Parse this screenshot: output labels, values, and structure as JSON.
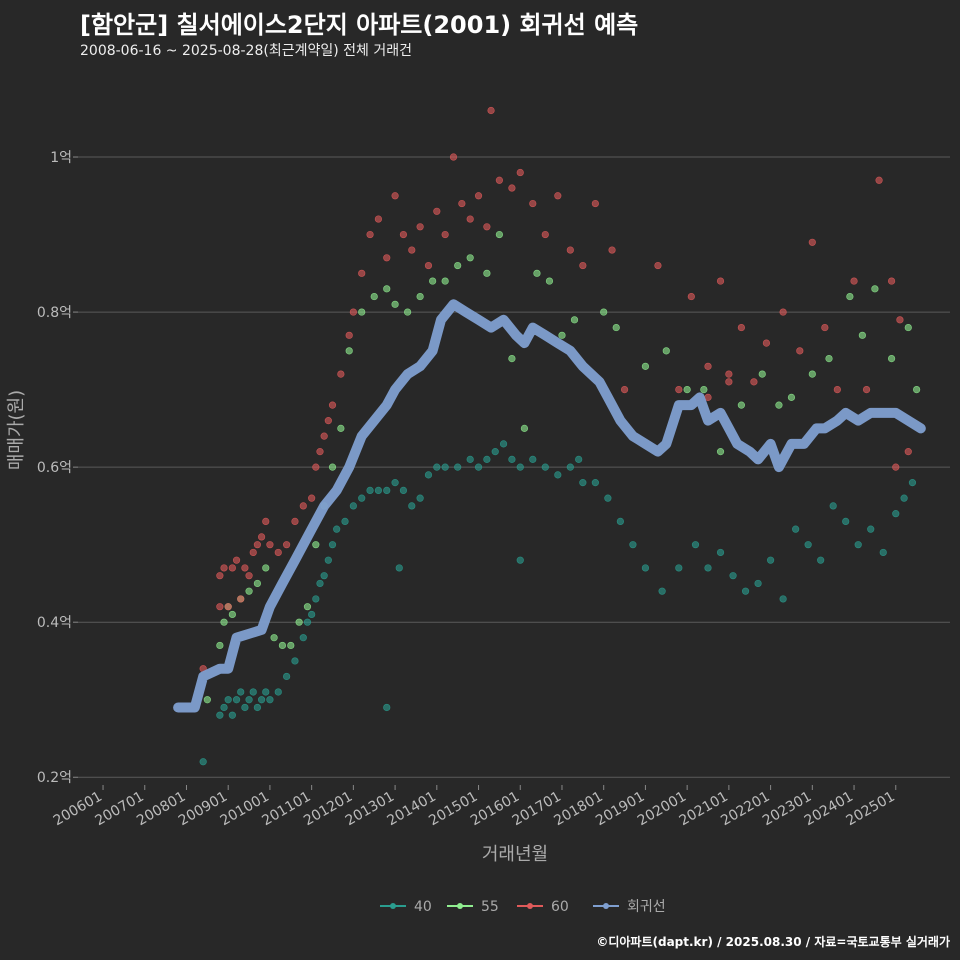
{
  "header": {
    "title": "[함안군] 칠서에이스2단지 아파트(2001) 회귀선 예측",
    "subtitle": "2008-06-16 ~ 2025-08-28(최근계약일) 전체 거래건"
  },
  "footer": "©디아파트(dapt.kr) / 2025.08.30 / 자료=국토교통부 실거래가",
  "chart_data": {
    "type": "scatter",
    "xlabel": "거래년월",
    "ylabel": "매매가(원)",
    "x_ticks": [
      "200601",
      "200701",
      "200801",
      "200901",
      "201001",
      "201101",
      "201201",
      "201301",
      "201401",
      "201501",
      "201601",
      "201701",
      "201801",
      "201901",
      "202001",
      "202101",
      "202201",
      "202301",
      "202401",
      "202501"
    ],
    "y_ticks": [
      {
        "value": 0.2,
        "label": "0.2억"
      },
      {
        "value": 0.4,
        "label": "0.4억"
      },
      {
        "value": 0.6,
        "label": "0.6억"
      },
      {
        "value": 0.8,
        "label": "0.8억"
      },
      {
        "value": 1.0,
        "label": "1억"
      }
    ],
    "ylim": [
      0.19,
      1.08
    ],
    "xlim": [
      2005.4,
      2026.3
    ],
    "colors": {
      "40": "#2a9d8f",
      "55": "#90ee90",
      "60": "#e05a5a",
      "regression": "#7f9fd0"
    },
    "legend": [
      {
        "key": "40",
        "label": "40"
      },
      {
        "key": "55",
        "label": "55"
      },
      {
        "key": "60",
        "label": "60"
      },
      {
        "key": "regression",
        "label": "회귀선"
      }
    ],
    "series": [
      {
        "name": "40",
        "points": [
          [
            2008.4,
            0.22
          ],
          [
            2008.8,
            0.28
          ],
          [
            2008.9,
            0.29
          ],
          [
            2009.0,
            0.3
          ],
          [
            2009.1,
            0.28
          ],
          [
            2009.2,
            0.3
          ],
          [
            2009.3,
            0.31
          ],
          [
            2009.4,
            0.29
          ],
          [
            2009.5,
            0.3
          ],
          [
            2009.6,
            0.31
          ],
          [
            2009.7,
            0.29
          ],
          [
            2009.8,
            0.3
          ],
          [
            2009.9,
            0.31
          ],
          [
            2010.0,
            0.3
          ],
          [
            2010.2,
            0.31
          ],
          [
            2010.4,
            0.33
          ],
          [
            2010.6,
            0.35
          ],
          [
            2010.8,
            0.38
          ],
          [
            2010.9,
            0.4
          ],
          [
            2011.0,
            0.41
          ],
          [
            2011.1,
            0.43
          ],
          [
            2011.2,
            0.45
          ],
          [
            2011.3,
            0.46
          ],
          [
            2011.4,
            0.48
          ],
          [
            2011.5,
            0.5
          ],
          [
            2011.6,
            0.52
          ],
          [
            2011.8,
            0.53
          ],
          [
            2012.0,
            0.55
          ],
          [
            2012.2,
            0.56
          ],
          [
            2012.4,
            0.57
          ],
          [
            2012.6,
            0.57
          ],
          [
            2012.8,
            0.57
          ],
          [
            2013.0,
            0.58
          ],
          [
            2013.2,
            0.57
          ],
          [
            2013.4,
            0.55
          ],
          [
            2013.6,
            0.56
          ],
          [
            2013.8,
            0.59
          ],
          [
            2014.0,
            0.6
          ],
          [
            2014.2,
            0.6
          ],
          [
            2014.5,
            0.6
          ],
          [
            2014.8,
            0.61
          ],
          [
            2015.0,
            0.6
          ],
          [
            2015.2,
            0.61
          ],
          [
            2015.4,
            0.62
          ],
          [
            2015.6,
            0.63
          ],
          [
            2015.8,
            0.61
          ],
          [
            2016.0,
            0.6
          ],
          [
            2016.3,
            0.61
          ],
          [
            2016.6,
            0.6
          ],
          [
            2016.9,
            0.59
          ],
          [
            2017.2,
            0.6
          ],
          [
            2017.5,
            0.58
          ],
          [
            2017.8,
            0.58
          ],
          [
            2018.1,
            0.56
          ],
          [
            2018.4,
            0.53
          ],
          [
            2018.7,
            0.5
          ],
          [
            2019.0,
            0.47
          ],
          [
            2019.4,
            0.44
          ],
          [
            2019.8,
            0.47
          ],
          [
            2020.2,
            0.5
          ],
          [
            2020.5,
            0.47
          ],
          [
            2020.8,
            0.49
          ],
          [
            2021.1,
            0.46
          ],
          [
            2021.4,
            0.44
          ],
          [
            2021.7,
            0.45
          ],
          [
            2022.0,
            0.48
          ],
          [
            2022.3,
            0.43
          ],
          [
            2022.6,
            0.52
          ],
          [
            2022.9,
            0.5
          ],
          [
            2023.2,
            0.48
          ],
          [
            2023.5,
            0.55
          ],
          [
            2023.8,
            0.53
          ],
          [
            2024.1,
            0.5
          ],
          [
            2024.4,
            0.52
          ],
          [
            2024.7,
            0.49
          ],
          [
            2025.0,
            0.54
          ],
          [
            2025.2,
            0.56
          ],
          [
            2025.4,
            0.58
          ],
          [
            2012.8,
            0.29
          ],
          [
            2016.0,
            0.48
          ],
          [
            2013.1,
            0.47
          ],
          [
            2017.4,
            0.61
          ]
        ]
      },
      {
        "name": "55",
        "points": [
          [
            2008.5,
            0.3
          ],
          [
            2008.8,
            0.37
          ],
          [
            2008.9,
            0.4
          ],
          [
            2009.0,
            0.42
          ],
          [
            2009.1,
            0.41
          ],
          [
            2009.3,
            0.43
          ],
          [
            2009.5,
            0.44
          ],
          [
            2009.7,
            0.45
          ],
          [
            2009.9,
            0.47
          ],
          [
            2010.1,
            0.38
          ],
          [
            2010.3,
            0.37
          ],
          [
            2010.5,
            0.37
          ],
          [
            2010.7,
            0.4
          ],
          [
            2010.9,
            0.42
          ],
          [
            2011.1,
            0.5
          ],
          [
            2011.3,
            0.55
          ],
          [
            2011.5,
            0.6
          ],
          [
            2011.7,
            0.65
          ],
          [
            2011.9,
            0.75
          ],
          [
            2012.2,
            0.8
          ],
          [
            2012.5,
            0.82
          ],
          [
            2012.8,
            0.83
          ],
          [
            2013.0,
            0.81
          ],
          [
            2013.3,
            0.8
          ],
          [
            2013.6,
            0.82
          ],
          [
            2013.9,
            0.84
          ],
          [
            2014.2,
            0.84
          ],
          [
            2014.5,
            0.86
          ],
          [
            2014.8,
            0.87
          ],
          [
            2015.2,
            0.85
          ],
          [
            2015.5,
            0.9
          ],
          [
            2015.8,
            0.74
          ],
          [
            2016.1,
            0.65
          ],
          [
            2016.4,
            0.85
          ],
          [
            2016.7,
            0.84
          ],
          [
            2017.0,
            0.77
          ],
          [
            2017.3,
            0.79
          ],
          [
            2018.0,
            0.8
          ],
          [
            2018.3,
            0.78
          ],
          [
            2019.0,
            0.73
          ],
          [
            2019.5,
            0.75
          ],
          [
            2020.0,
            0.7
          ],
          [
            2020.4,
            0.7
          ],
          [
            2020.8,
            0.62
          ],
          [
            2021.3,
            0.68
          ],
          [
            2021.8,
            0.72
          ],
          [
            2022.2,
            0.68
          ],
          [
            2022.5,
            0.69
          ],
          [
            2023.0,
            0.72
          ],
          [
            2023.4,
            0.74
          ],
          [
            2023.9,
            0.82
          ],
          [
            2024.2,
            0.77
          ],
          [
            2024.5,
            0.83
          ],
          [
            2024.9,
            0.74
          ],
          [
            2025.3,
            0.78
          ],
          [
            2025.5,
            0.7
          ]
        ]
      },
      {
        "name": "60",
        "points": [
          [
            2008.4,
            0.34
          ],
          [
            2008.8,
            0.42
          ],
          [
            2008.8,
            0.46
          ],
          [
            2008.9,
            0.47
          ],
          [
            2009.0,
            0.42
          ],
          [
            2009.1,
            0.47
          ],
          [
            2009.2,
            0.48
          ],
          [
            2009.3,
            0.43
          ],
          [
            2009.4,
            0.47
          ],
          [
            2009.5,
            0.46
          ],
          [
            2009.6,
            0.49
          ],
          [
            2009.7,
            0.5
          ],
          [
            2009.8,
            0.51
          ],
          [
            2009.9,
            0.53
          ],
          [
            2010.0,
            0.5
          ],
          [
            2010.2,
            0.49
          ],
          [
            2010.4,
            0.5
          ],
          [
            2010.6,
            0.53
          ],
          [
            2010.8,
            0.55
          ],
          [
            2011.0,
            0.56
          ],
          [
            2011.1,
            0.6
          ],
          [
            2011.2,
            0.62
          ],
          [
            2011.3,
            0.64
          ],
          [
            2011.4,
            0.66
          ],
          [
            2011.5,
            0.68
          ],
          [
            2011.7,
            0.72
          ],
          [
            2011.9,
            0.77
          ],
          [
            2012.0,
            0.8
          ],
          [
            2012.2,
            0.85
          ],
          [
            2012.4,
            0.9
          ],
          [
            2012.6,
            0.92
          ],
          [
            2012.8,
            0.87
          ],
          [
            2013.0,
            0.95
          ],
          [
            2013.2,
            0.9
          ],
          [
            2013.4,
            0.88
          ],
          [
            2013.6,
            0.91
          ],
          [
            2013.8,
            0.86
          ],
          [
            2014.0,
            0.93
          ],
          [
            2014.2,
            0.9
          ],
          [
            2014.4,
            1.0
          ],
          [
            2014.6,
            0.94
          ],
          [
            2014.8,
            0.92
          ],
          [
            2015.0,
            0.95
          ],
          [
            2015.2,
            0.91
          ],
          [
            2015.3,
            1.06
          ],
          [
            2015.5,
            0.97
          ],
          [
            2015.8,
            0.96
          ],
          [
            2016.0,
            0.98
          ],
          [
            2016.3,
            0.94
          ],
          [
            2016.6,
            0.9
          ],
          [
            2016.9,
            0.95
          ],
          [
            2017.2,
            0.88
          ],
          [
            2017.5,
            0.86
          ],
          [
            2017.8,
            0.94
          ],
          [
            2018.2,
            0.88
          ],
          [
            2018.5,
            0.7
          ],
          [
            2019.3,
            0.86
          ],
          [
            2019.8,
            0.7
          ],
          [
            2020.1,
            0.82
          ],
          [
            2020.5,
            0.73
          ],
          [
            2020.8,
            0.84
          ],
          [
            2021.0,
            0.72
          ],
          [
            2021.3,
            0.78
          ],
          [
            2021.6,
            0.71
          ],
          [
            2021.9,
            0.76
          ],
          [
            2022.3,
            0.8
          ],
          [
            2022.7,
            0.75
          ],
          [
            2023.0,
            0.89
          ],
          [
            2023.3,
            0.78
          ],
          [
            2023.6,
            0.7
          ],
          [
            2024.0,
            0.84
          ],
          [
            2024.3,
            0.7
          ],
          [
            2024.6,
            0.97
          ],
          [
            2024.9,
            0.84
          ],
          [
            2025.1,
            0.79
          ],
          [
            2025.3,
            0.62
          ],
          [
            2025.0,
            0.6
          ],
          [
            2020.5,
            0.69
          ],
          [
            2021.0,
            0.71
          ]
        ]
      }
    ],
    "regression": [
      [
        2007.8,
        0.29
      ],
      [
        2008.2,
        0.29
      ],
      [
        2008.4,
        0.33
      ],
      [
        2008.8,
        0.34
      ],
      [
        2009.0,
        0.34
      ],
      [
        2009.2,
        0.38
      ],
      [
        2009.8,
        0.39
      ],
      [
        2010.0,
        0.42
      ],
      [
        2010.3,
        0.45
      ],
      [
        2010.6,
        0.48
      ],
      [
        2011.0,
        0.52
      ],
      [
        2011.3,
        0.55
      ],
      [
        2011.6,
        0.57
      ],
      [
        2011.9,
        0.6
      ],
      [
        2012.2,
        0.64
      ],
      [
        2012.5,
        0.66
      ],
      [
        2012.8,
        0.68
      ],
      [
        2013.0,
        0.7
      ],
      [
        2013.3,
        0.72
      ],
      [
        2013.6,
        0.73
      ],
      [
        2013.9,
        0.75
      ],
      [
        2014.1,
        0.79
      ],
      [
        2014.4,
        0.81
      ],
      [
        2014.7,
        0.8
      ],
      [
        2015.0,
        0.79
      ],
      [
        2015.3,
        0.78
      ],
      [
        2015.6,
        0.79
      ],
      [
        2015.9,
        0.77
      ],
      [
        2016.1,
        0.76
      ],
      [
        2016.3,
        0.78
      ],
      [
        2016.6,
        0.77
      ],
      [
        2016.9,
        0.76
      ],
      [
        2017.2,
        0.75
      ],
      [
        2017.5,
        0.73
      ],
      [
        2017.9,
        0.71
      ],
      [
        2018.1,
        0.69
      ],
      [
        2018.4,
        0.66
      ],
      [
        2018.7,
        0.64
      ],
      [
        2019.0,
        0.63
      ],
      [
        2019.3,
        0.62
      ],
      [
        2019.5,
        0.63
      ],
      [
        2019.8,
        0.68
      ],
      [
        2020.1,
        0.68
      ],
      [
        2020.3,
        0.69
      ],
      [
        2020.5,
        0.66
      ],
      [
        2020.8,
        0.67
      ],
      [
        2021.0,
        0.65
      ],
      [
        2021.2,
        0.63
      ],
      [
        2021.5,
        0.62
      ],
      [
        2021.7,
        0.61
      ],
      [
        2022.0,
        0.63
      ],
      [
        2022.2,
        0.6
      ],
      [
        2022.5,
        0.63
      ],
      [
        2022.8,
        0.63
      ],
      [
        2023.1,
        0.65
      ],
      [
        2023.3,
        0.65
      ],
      [
        2023.6,
        0.66
      ],
      [
        2023.8,
        0.67
      ],
      [
        2024.1,
        0.66
      ],
      [
        2024.4,
        0.67
      ],
      [
        2024.7,
        0.67
      ],
      [
        2025.0,
        0.67
      ],
      [
        2025.3,
        0.66
      ],
      [
        2025.6,
        0.65
      ]
    ]
  }
}
